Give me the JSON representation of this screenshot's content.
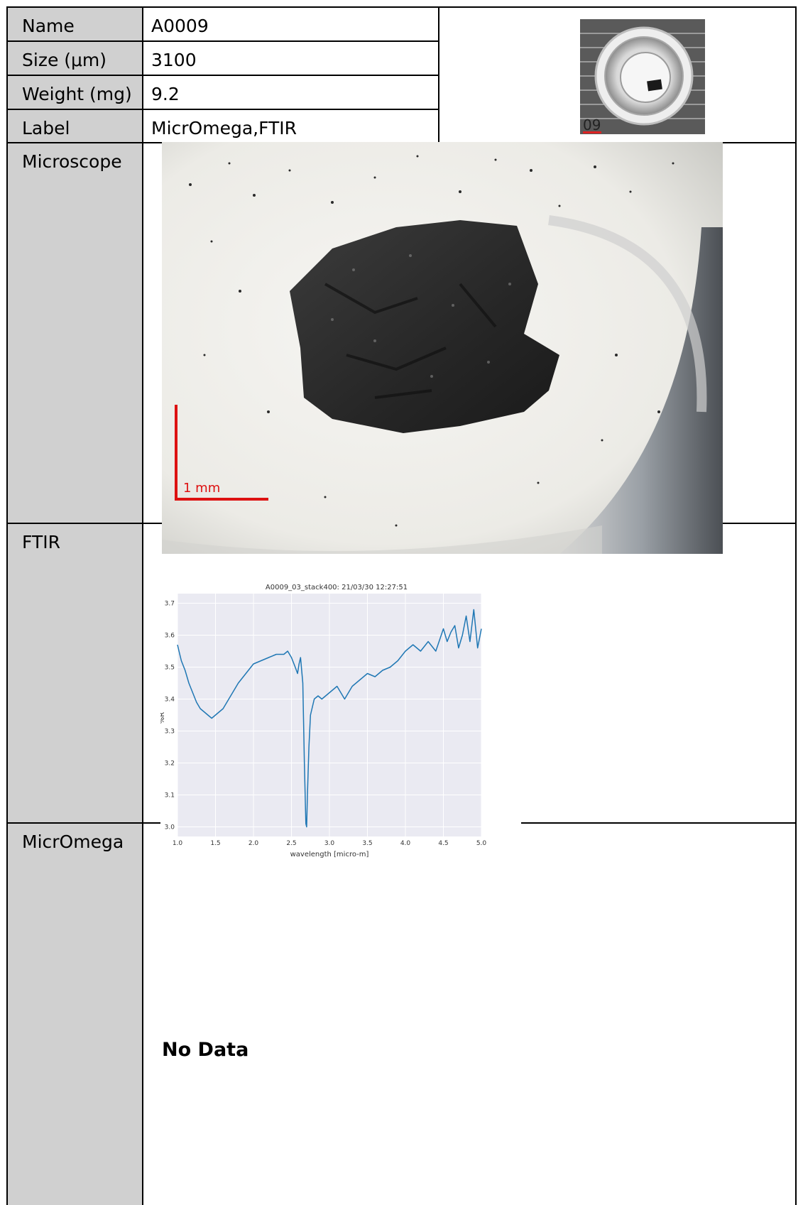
{
  "rows": {
    "name": {
      "label": "Name",
      "value": "A0009"
    },
    "size": {
      "label": "Size (μm)",
      "value": "3100"
    },
    "weight": {
      "label": "Weight (mg)",
      "value": "9.2"
    },
    "tags": {
      "label": "Label",
      "value": "MicrOmega,FTIR"
    }
  },
  "sections": {
    "microscope": {
      "label": "Microscope",
      "scale_label": "1 mm"
    },
    "ftir": {
      "label": "FTIR"
    },
    "micromega": {
      "label": "MicrOmega",
      "no_data": "No Data"
    }
  },
  "thumbnail": {
    "caption": "09"
  },
  "chart_data": {
    "type": "line",
    "title": "A0009_03_stack400:  21/03/30 12:27:51",
    "xlabel": "wavelength [micro-m]",
    "ylabel": "%R",
    "xlim": [
      1.0,
      5.0
    ],
    "ylim": [
      2.97,
      3.73
    ],
    "xticks": [
      "1.0",
      "1.5",
      "2.0",
      "2.5",
      "3.0",
      "3.5",
      "4.0",
      "4.5",
      "5.0"
    ],
    "yticks": [
      "3.0",
      "3.1",
      "3.2",
      "3.3",
      "3.4",
      "3.5",
      "3.6",
      "3.7"
    ],
    "grid": true,
    "line_color": "#1f77b4",
    "background": "#eaeaf2",
    "series": [
      {
        "x": [
          1.0,
          1.02,
          1.05,
          1.1,
          1.15,
          1.2,
          1.25,
          1.3,
          1.35,
          1.4,
          1.45,
          1.5,
          1.6,
          1.7,
          1.8,
          1.9,
          2.0,
          2.1,
          2.2,
          2.3,
          2.4,
          2.45,
          2.5,
          2.55,
          2.58,
          2.6,
          2.62,
          2.65,
          2.67,
          2.69,
          2.7,
          2.71,
          2.73,
          2.75,
          2.8,
          2.85,
          2.9,
          3.0,
          3.1,
          3.2,
          3.3,
          3.4,
          3.5,
          3.6,
          3.7,
          3.8,
          3.9,
          4.0,
          4.1,
          4.2,
          4.3,
          4.4,
          4.5,
          4.55,
          4.6,
          4.65,
          4.7,
          4.75,
          4.8,
          4.85,
          4.9,
          4.95,
          5.0
        ],
        "y": [
          3.57,
          3.55,
          3.52,
          3.49,
          3.45,
          3.42,
          3.39,
          3.37,
          3.36,
          3.35,
          3.34,
          3.35,
          3.37,
          3.41,
          3.45,
          3.48,
          3.51,
          3.52,
          3.53,
          3.54,
          3.54,
          3.55,
          3.53,
          3.5,
          3.48,
          3.51,
          3.53,
          3.45,
          3.2,
          3.01,
          3.0,
          3.1,
          3.25,
          3.35,
          3.4,
          3.41,
          3.4,
          3.42,
          3.44,
          3.4,
          3.44,
          3.46,
          3.48,
          3.47,
          3.49,
          3.5,
          3.52,
          3.55,
          3.57,
          3.55,
          3.58,
          3.55,
          3.62,
          3.58,
          3.61,
          3.63,
          3.56,
          3.6,
          3.66,
          3.58,
          3.68,
          3.56,
          3.62
        ]
      }
    ]
  }
}
